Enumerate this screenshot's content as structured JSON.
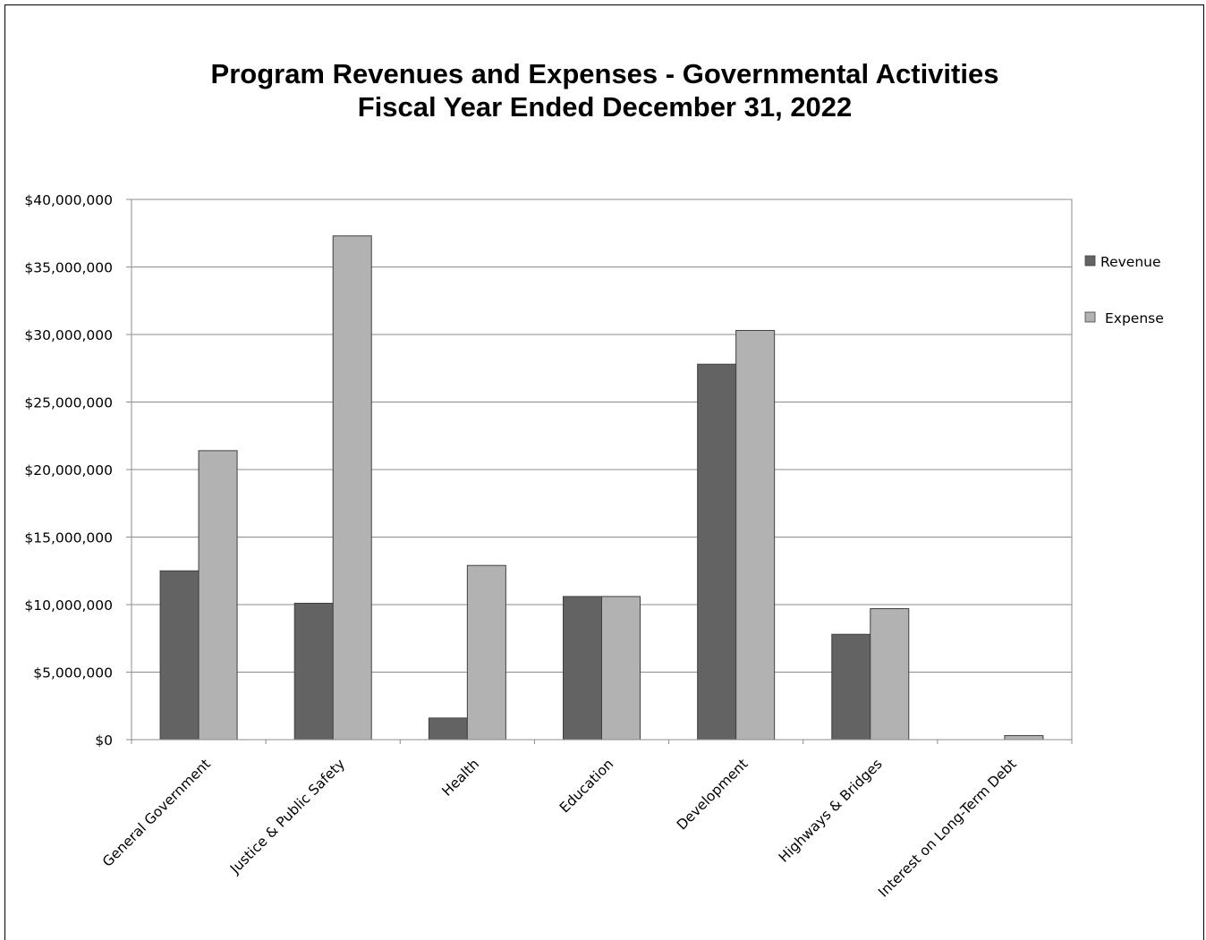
{
  "chart_data": {
    "type": "bar",
    "title": "Program Revenues and Expenses - Governmental Activities",
    "subtitle": "Fiscal Year Ended December 31, 2022",
    "xlabel": "",
    "ylabel": "",
    "ylim": [
      0,
      40000000
    ],
    "yticks": [
      "$0",
      "$5,000,000",
      "$10,000,000",
      "$15,000,000",
      "$20,000,000",
      "$25,000,000",
      "$30,000,000",
      "$35,000,000",
      "$40,000,000"
    ],
    "categories": [
      "General Government",
      "Justice & Public Safety",
      "Health",
      "Education",
      "Development",
      "Highways & Bridges",
      "Interest on Long-Term Debt"
    ],
    "series": [
      {
        "name": "Revenue",
        "color": "#636363",
        "values": [
          12500000,
          10100000,
          1600000,
          10600000,
          27800000,
          7800000,
          0
        ]
      },
      {
        "name": "Expense",
        "color": "#b2b2b2",
        "values": [
          21400000,
          37300000,
          12900000,
          10600000,
          30300000,
          9700000,
          300000
        ]
      }
    ],
    "grid": true,
    "legend_position": "right"
  }
}
